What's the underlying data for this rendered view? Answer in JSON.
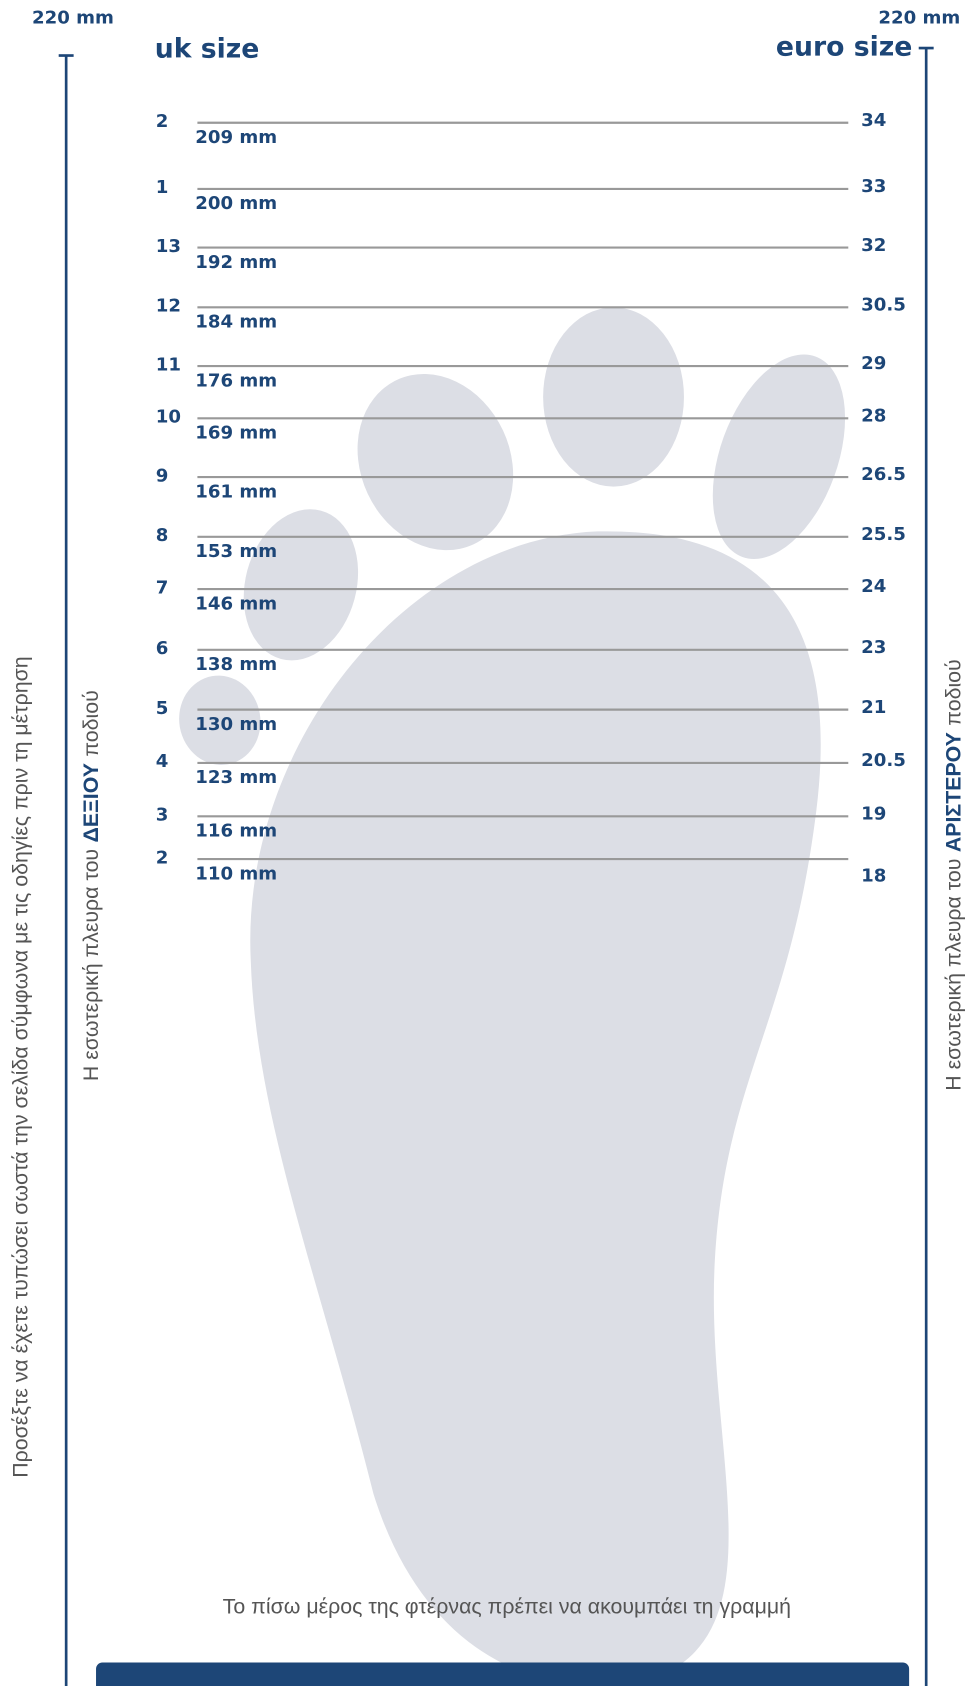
{
  "header": {
    "left_size": "220 mm",
    "right_size": "220 mm",
    "uk_title": "uk size",
    "euro_title": "euro size"
  },
  "rows": [
    {
      "uk": "2",
      "mm": "209 mm",
      "euro": "34"
    },
    {
      "uk": "1",
      "mm": "200 mm",
      "euro": "33"
    },
    {
      "uk": "13",
      "mm": "192 mm",
      "euro": "32"
    },
    {
      "uk": "12",
      "mm": "184 mm",
      "euro": "30.5"
    },
    {
      "uk": "11",
      "mm": "176 mm",
      "euro": "29"
    },
    {
      "uk": "10",
      "mm": "169 mm",
      "euro": "28"
    },
    {
      "uk": "9",
      "mm": "161 mm",
      "euro": "26.5"
    },
    {
      "uk": "8",
      "mm": "153 mm",
      "euro": "25.5"
    },
    {
      "uk": "7",
      "mm": "146 mm",
      "euro": "24"
    },
    {
      "uk": "6",
      "mm": "138 mm",
      "euro": "23"
    },
    {
      "uk": "5",
      "mm": "130 mm",
      "euro": "21"
    },
    {
      "uk": "4",
      "mm": "123 mm",
      "euro": "20.5"
    },
    {
      "uk": "3",
      "mm": "116 mm",
      "euro": "19"
    },
    {
      "uk": "2",
      "mm": "110 mm",
      "euro": "18"
    }
  ],
  "notes": {
    "print_warning": "Προσέξτε να έχετε τυπώσει σωστά την σελίδα σύμφωνα με τις οδηγίες πριν τη μέτρηση",
    "right_foot": {
      "prefix": "Η εσωτερική πλευρα του",
      "bold": "ΔΕΞΙΟΥ",
      "suffix": "ποδιού"
    },
    "left_foot": {
      "prefix": "Η εσωτερική πλευρα του",
      "bold": "ΑΡΙΣΤΕΡΟΥ",
      "suffix": "ποδιού"
    },
    "heel": "Το πίσω μέρος της φτέρνας πρέπει να ακουμπάει τη γραμμή"
  }
}
